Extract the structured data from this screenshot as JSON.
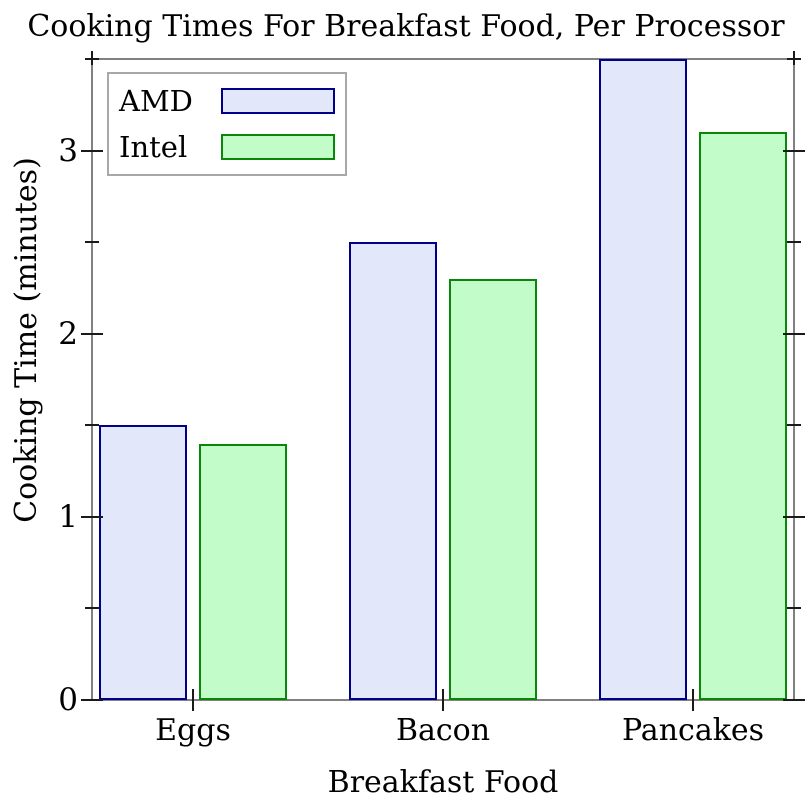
{
  "title": "Cooking Times For Breakfast Food, Per Processor",
  "chart_data": {
    "type": "bar",
    "title": "Cooking Times For Breakfast Food, Per Processor",
    "xlabel": "Breakfast Food",
    "ylabel": "Cooking Time (minutes)",
    "categories": [
      "Eggs",
      "Bacon",
      "Pancakes"
    ],
    "series": [
      {
        "name": "AMD",
        "values": [
          1.5,
          2.5,
          3.5
        ],
        "fill_color": "#e2e7fa",
        "border_color": "#00008b"
      },
      {
        "name": "Intel",
        "values": [
          1.4,
          2.3,
          3.1
        ],
        "fill_color": "#c1fcc9",
        "border_color": "#0a860a"
      }
    ],
    "ylim": [
      0,
      3.5
    ],
    "yticks_major": [
      0,
      1,
      2,
      3
    ],
    "yticks_minor": [
      0.5,
      1.5,
      2.5,
      3.5
    ],
    "legend_position": "top-left",
    "grid": false
  },
  "colors": {
    "background": "#ffffff",
    "spine": "#818181",
    "tick": "#1a1a1a",
    "legend_border": "#a8a8a8",
    "text": "#000000"
  }
}
